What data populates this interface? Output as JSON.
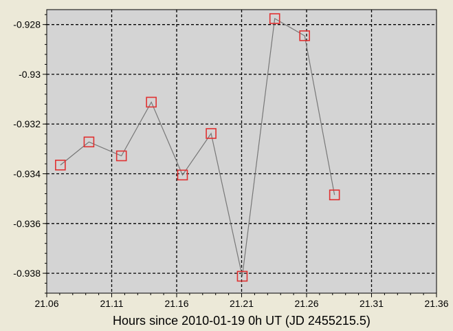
{
  "chart_data": {
    "type": "scatter",
    "xlabel": "Hours since 2010-01-19 0h UT (JD 2455215.5)",
    "ylabel": "",
    "xlim": [
      21.06,
      21.36
    ],
    "ylim": [
      -0.9388,
      -0.9274
    ],
    "x_ticks": [
      "21.06",
      "21.11",
      "21.16",
      "21.21",
      "21.26",
      "21.31",
      "21.36"
    ],
    "y_ticks": [
      "-0.928",
      "-0.93",
      "-0.932",
      "-0.934",
      "-0.936",
      "-0.938"
    ],
    "grid": true,
    "connect_points": true,
    "series": [
      {
        "x": [
          21.0705,
          21.0925,
          21.1175,
          21.1405,
          21.1645,
          21.1865,
          21.2105,
          21.2355,
          21.2585,
          21.2815
        ],
        "y": [
          -0.93365,
          -0.93272,
          -0.93328,
          -0.93112,
          -0.93405,
          -0.93238,
          -0.93812,
          -0.92776,
          -0.92845,
          -0.93485
        ]
      }
    ],
    "colors": {
      "plot_background": "#d4d4d4",
      "page_background": "#ece9d8",
      "marker": "#e03030",
      "line": "#777777",
      "grid": "#000000"
    }
  }
}
